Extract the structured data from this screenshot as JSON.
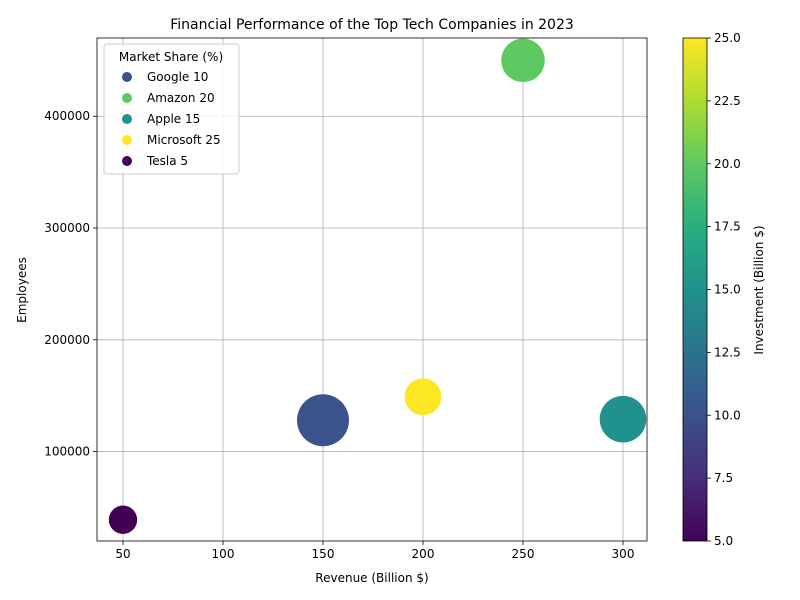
{
  "chart_data": {
    "type": "scatter",
    "title": "Financial Performance of the Top Tech Companies in 2023",
    "xlabel": "Revenue (Billion $)",
    "ylabel": "Employees",
    "xlim": [
      37,
      312
    ],
    "ylim": [
      20000,
      470000
    ],
    "x_ticks": [
      50,
      100,
      150,
      200,
      250,
      300
    ],
    "y_ticks": [
      100000,
      200000,
      300000,
      400000
    ],
    "grid": true,
    "legend": {
      "title": "Market Share (%)",
      "position": "top-left"
    },
    "colorbar": {
      "label": "Investment (Billion $)",
      "range": [
        5,
        25
      ],
      "ticks": [
        "5.0",
        "7.5",
        "10.0",
        "12.5",
        "15.0",
        "17.5",
        "20.0",
        "22.5",
        "25.0"
      ],
      "colormap": "viridis"
    },
    "points": [
      {
        "company": "Google",
        "market_share": 10,
        "revenue": 150,
        "employees": 128000,
        "investment": 10,
        "legend_label": "Google 10",
        "size_rel": 1.0,
        "color": "#3b528b"
      },
      {
        "company": "Amazon",
        "market_share": 20,
        "revenue": 250,
        "employees": 450000,
        "investment": 20,
        "legend_label": "Amazon 20",
        "size_rel": 0.7,
        "color": "#5ec962"
      },
      {
        "company": "Apple",
        "market_share": 15,
        "revenue": 300,
        "employees": 129000,
        "investment": 15,
        "legend_label": "Apple 15",
        "size_rel": 0.8,
        "color": "#21918c"
      },
      {
        "company": "Microsoft",
        "market_share": 25,
        "revenue": 200,
        "employees": 149000,
        "investment": 25,
        "legend_label": "Microsoft 25",
        "size_rel": 0.5,
        "color": "#fde725"
      },
      {
        "company": "Tesla",
        "market_share": 5,
        "revenue": 50,
        "employees": 39000,
        "investment": 5,
        "legend_label": "Tesla 5",
        "size_rel": 0.3,
        "color": "#440154"
      }
    ]
  }
}
